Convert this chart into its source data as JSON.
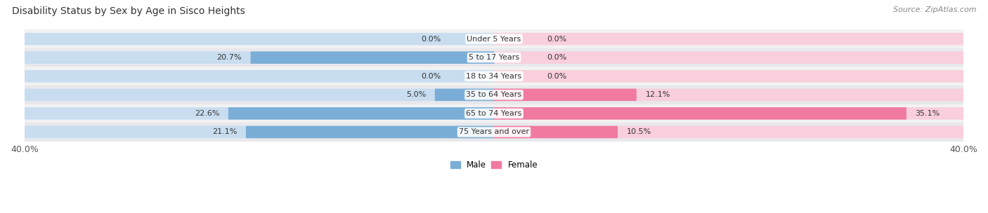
{
  "title": "Disability Status by Sex by Age in Sisco Heights",
  "source": "Source: ZipAtlas.com",
  "categories": [
    "Under 5 Years",
    "5 to 17 Years",
    "18 to 34 Years",
    "35 to 64 Years",
    "65 to 74 Years",
    "75 Years and over"
  ],
  "male_values": [
    0.0,
    20.7,
    0.0,
    5.0,
    22.6,
    21.1
  ],
  "female_values": [
    0.0,
    0.0,
    0.0,
    12.1,
    35.1,
    10.5
  ],
  "male_color": "#7aaed6",
  "female_color": "#f07aa0",
  "male_bg_color": "#c8ddef",
  "female_bg_color": "#f9cedd",
  "male_label": "Male",
  "female_label": "Female",
  "xlim": 40.0,
  "row_colors": [
    "#f2f2f2",
    "#e8e8ec",
    "#f2f2f2",
    "#e8e8ec",
    "#f2f2f2",
    "#e8e8ec"
  ],
  "title_fontsize": 10,
  "source_fontsize": 8,
  "tick_fontsize": 9,
  "label_fontsize": 8,
  "value_fontsize": 8
}
